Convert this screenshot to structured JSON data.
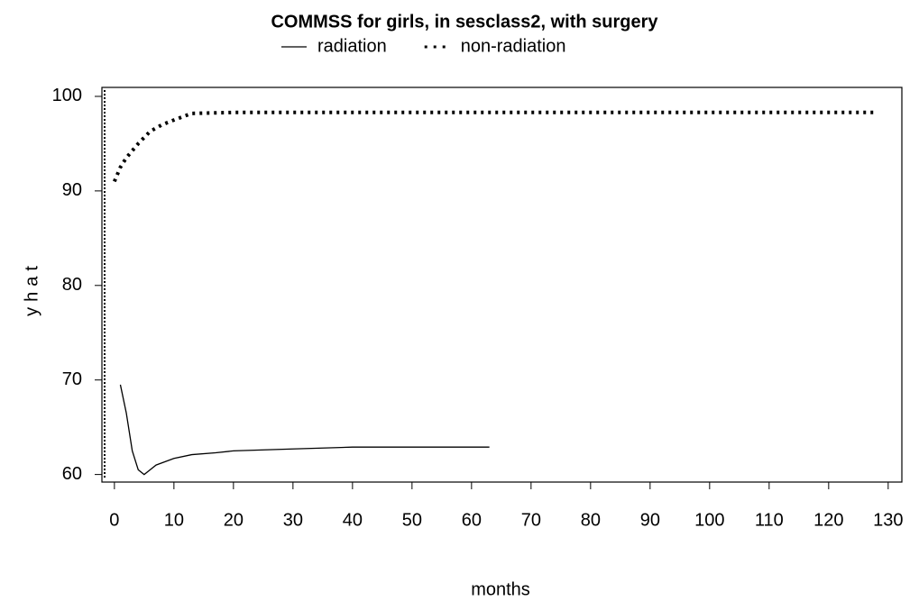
{
  "chart_data": {
    "type": "line",
    "title": "COMMSS for girls, in sesclass2, with surgery",
    "x_label": "months",
    "y_label": "yhat",
    "xlim": [
      -2.1,
      132.3
    ],
    "ylim": [
      59.2,
      100.95
    ],
    "xticks": [
      0,
      10,
      20,
      30,
      40,
      50,
      60,
      70,
      80,
      90,
      100,
      110,
      120,
      130
    ],
    "yticks": [
      60,
      70,
      80,
      90,
      100
    ],
    "series": [
      {
        "name": "radiation",
        "color": "#000000",
        "style": "solid",
        "x": [
          1,
          2,
          3,
          4,
          5,
          6,
          7,
          10,
          13,
          17,
          20,
          30,
          40,
          50,
          63
        ],
        "values": [
          69.5,
          66.5,
          62.5,
          60.5,
          60,
          60.5,
          61,
          61.7,
          62.1,
          62.3,
          62.5,
          62.7,
          62.9,
          62.9,
          62.9
        ]
      },
      {
        "name": "non-radiation",
        "color": "#000000",
        "style": "dotted",
        "x": [
          0,
          1,
          2,
          4,
          6,
          8,
          10,
          13,
          20,
          30,
          60,
          128
        ],
        "values": [
          91,
          92.5,
          93.5,
          95,
          96.3,
          97,
          97.5,
          98.2,
          98.3,
          98.3,
          98.3,
          98.3
        ]
      }
    ]
  }
}
